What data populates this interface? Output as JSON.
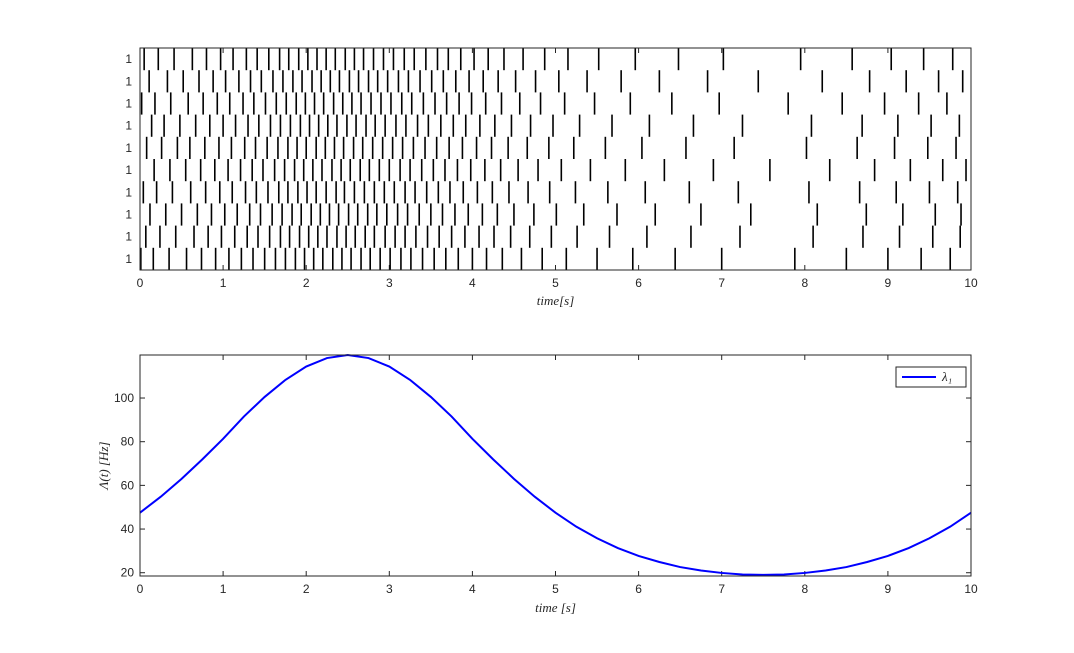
{
  "chart_data": [
    {
      "type": "raster",
      "xlabel": "time[s]",
      "xlim": [
        0,
        10
      ],
      "xticks": [
        0,
        1,
        2,
        3,
        4,
        5,
        6,
        7,
        8,
        9,
        10
      ],
      "color": "#000000",
      "trials": [
        {
          "label": "1",
          "spikes": [
            0.05,
            0.22,
            0.41,
            0.63,
            0.8,
            0.97,
            1.12,
            1.28,
            1.41,
            1.55,
            1.68,
            1.79,
            1.91,
            2.02,
            2.13,
            2.24,
            2.35,
            2.47,
            2.58,
            2.69,
            2.81,
            2.93,
            3.05,
            3.18,
            3.3,
            3.44,
            3.58,
            3.71,
            3.86,
            4.02,
            4.19,
            4.38,
            4.61,
            4.87,
            5.15,
            5.52,
            5.96,
            6.48,
            7.02,
            7.95,
            8.57,
            9.04,
            9.43,
            9.78
          ]
        },
        {
          "label": "1",
          "spikes": [
            0.11,
            0.33,
            0.52,
            0.71,
            0.88,
            1.03,
            1.19,
            1.33,
            1.46,
            1.6,
            1.72,
            1.84,
            1.95,
            2.07,
            2.18,
            2.29,
            2.4,
            2.52,
            2.63,
            2.75,
            2.86,
            2.98,
            3.11,
            3.23,
            3.37,
            3.51,
            3.65,
            3.8,
            3.96,
            4.13,
            4.31,
            4.52,
            4.76,
            5.04,
            5.38,
            5.79,
            6.25,
            6.83,
            7.44,
            8.21,
            8.78,
            9.22,
            9.61,
            9.9
          ]
        },
        {
          "label": "1",
          "spikes": [
            0.02,
            0.18,
            0.37,
            0.58,
            0.76,
            0.93,
            1.08,
            1.24,
            1.37,
            1.51,
            1.64,
            1.76,
            1.88,
            1.99,
            2.1,
            2.21,
            2.33,
            2.44,
            2.55,
            2.66,
            2.78,
            2.9,
            3.02,
            3.15,
            3.27,
            3.41,
            3.55,
            3.69,
            3.84,
            3.99,
            4.16,
            4.35,
            4.57,
            4.82,
            5.11,
            5.47,
            5.9,
            6.4,
            6.97,
            7.8,
            8.45,
            8.96,
            9.37,
            9.71
          ]
        },
        {
          "label": "1",
          "spikes": [
            0.14,
            0.29,
            0.48,
            0.67,
            0.84,
            1.0,
            1.15,
            1.3,
            1.43,
            1.57,
            1.69,
            1.81,
            1.93,
            2.04,
            2.15,
            2.26,
            2.37,
            2.49,
            2.6,
            2.72,
            2.83,
            2.95,
            3.08,
            3.2,
            3.34,
            3.47,
            3.62,
            3.77,
            3.92,
            4.09,
            4.27,
            4.47,
            4.7,
            4.97,
            5.29,
            5.68,
            6.13,
            6.66,
            7.25,
            8.08,
            8.69,
            9.12,
            9.52,
            9.86
          ]
        },
        {
          "label": "1",
          "spikes": [
            0.08,
            0.26,
            0.45,
            0.6,
            0.78,
            0.95,
            1.1,
            1.26,
            1.39,
            1.53,
            1.66,
            1.78,
            1.89,
            2.0,
            2.12,
            2.23,
            2.34,
            2.45,
            2.57,
            2.68,
            2.8,
            2.92,
            3.04,
            3.16,
            3.29,
            3.43,
            3.57,
            3.72,
            3.88,
            4.05,
            4.23,
            4.43,
            4.66,
            4.92,
            5.22,
            5.6,
            6.04,
            6.57,
            7.15,
            8.02,
            8.63,
            9.08,
            9.48,
            9.82
          ]
        },
        {
          "label": "1",
          "spikes": [
            0.17,
            0.36,
            0.55,
            0.73,
            0.9,
            1.06,
            1.21,
            1.35,
            1.48,
            1.62,
            1.74,
            1.86,
            1.97,
            2.08,
            2.19,
            2.31,
            2.42,
            2.53,
            2.65,
            2.76,
            2.88,
            3.0,
            3.13,
            3.25,
            3.39,
            3.53,
            3.67,
            3.82,
            3.98,
            4.15,
            4.34,
            4.55,
            4.79,
            5.07,
            5.42,
            5.84,
            6.31,
            6.9,
            7.58,
            8.3,
            8.84,
            9.27,
            9.66,
            9.94
          ]
        },
        {
          "label": "1",
          "spikes": [
            0.04,
            0.2,
            0.39,
            0.61,
            0.79,
            0.96,
            1.11,
            1.27,
            1.4,
            1.54,
            1.67,
            1.78,
            1.9,
            2.01,
            2.12,
            2.24,
            2.36,
            2.46,
            2.58,
            2.7,
            2.82,
            2.94,
            3.06,
            3.19,
            3.31,
            3.45,
            3.59,
            3.73,
            3.89,
            4.06,
            4.24,
            4.44,
            4.67,
            4.93,
            5.24,
            5.63,
            6.08,
            6.61,
            7.2,
            8.05,
            8.66,
            9.1,
            9.5,
            9.84
          ]
        },
        {
          "label": "1",
          "spikes": [
            0.12,
            0.31,
            0.5,
            0.69,
            0.86,
            1.02,
            1.17,
            1.32,
            1.45,
            1.59,
            1.71,
            1.83,
            1.94,
            2.06,
            2.17,
            2.28,
            2.39,
            2.51,
            2.62,
            2.74,
            2.85,
            2.97,
            3.1,
            3.22,
            3.36,
            3.5,
            3.64,
            3.79,
            3.95,
            4.12,
            4.3,
            4.5,
            4.74,
            5.01,
            5.34,
            5.74,
            6.2,
            6.75,
            7.35,
            8.15,
            8.74,
            9.18,
            9.57,
            9.88
          ]
        },
        {
          "label": "1",
          "spikes": [
            0.07,
            0.24,
            0.43,
            0.65,
            0.82,
            0.98,
            1.14,
            1.29,
            1.42,
            1.56,
            1.69,
            1.8,
            1.92,
            2.03,
            2.14,
            2.25,
            2.37,
            2.48,
            2.59,
            2.71,
            2.82,
            2.95,
            3.07,
            3.19,
            3.32,
            3.46,
            3.6,
            3.75,
            3.91,
            4.08,
            4.26,
            4.46,
            4.69,
            4.95,
            5.26,
            5.65,
            6.1,
            6.63,
            7.22,
            8.1,
            8.7,
            9.14,
            9.54,
            9.87
          ]
        },
        {
          "label": "1",
          "spikes": [
            0.01,
            0.16,
            0.35,
            0.56,
            0.74,
            0.91,
            1.07,
            1.22,
            1.36,
            1.5,
            1.63,
            1.75,
            1.87,
            1.98,
            2.09,
            2.2,
            2.32,
            2.43,
            2.54,
            2.66,
            2.77,
            2.89,
            3.01,
            3.14,
            3.26,
            3.4,
            3.54,
            3.68,
            3.83,
            4.0,
            4.17,
            4.36,
            4.59,
            4.84,
            5.13,
            5.5,
            5.93,
            6.44,
            7.0,
            7.88,
            8.5,
            9.0,
            9.4,
            9.75
          ]
        }
      ]
    },
    {
      "type": "line",
      "xlabel": "time  [s]",
      "ylabel": "Λ(t) [Hz]",
      "xlim": [
        0,
        10
      ],
      "ylim": [
        18.5,
        119.7
      ],
      "xticks": [
        0,
        1,
        2,
        3,
        4,
        5,
        6,
        7,
        8,
        9,
        10
      ],
      "yticks": [
        20,
        40,
        60,
        80,
        100
      ],
      "legend": "upper right",
      "x": [
        0,
        0.25,
        0.5,
        0.75,
        1,
        1.25,
        1.5,
        1.75,
        2,
        2.25,
        2.5,
        2.75,
        3,
        3.25,
        3.5,
        3.75,
        4,
        4.25,
        4.5,
        4.75,
        5,
        5.25,
        5.5,
        5.75,
        6,
        6.25,
        6.5,
        6.75,
        7,
        7.25,
        7.5,
        7.75,
        8,
        8.25,
        8.5,
        8.75,
        9,
        9.25,
        9.5,
        9.75,
        10
      ],
      "series": [
        {
          "name": "λ₁",
          "color": "#0000ff",
          "values": [
            47.5,
            54.8,
            63.0,
            71.9,
            81.3,
            91.5,
            100.5,
            108.3,
            114.4,
            118.3,
            119.7,
            118.3,
            114.4,
            108.3,
            100.5,
            91.5,
            81.3,
            71.9,
            63.0,
            54.8,
            47.5,
            41.1,
            35.8,
            31.3,
            27.7,
            24.9,
            22.6,
            21.0,
            19.9,
            19.2,
            19.0,
            19.2,
            19.9,
            21.0,
            22.6,
            24.9,
            27.7,
            31.3,
            35.8,
            41.1,
            47.5
          ]
        }
      ]
    }
  ]
}
